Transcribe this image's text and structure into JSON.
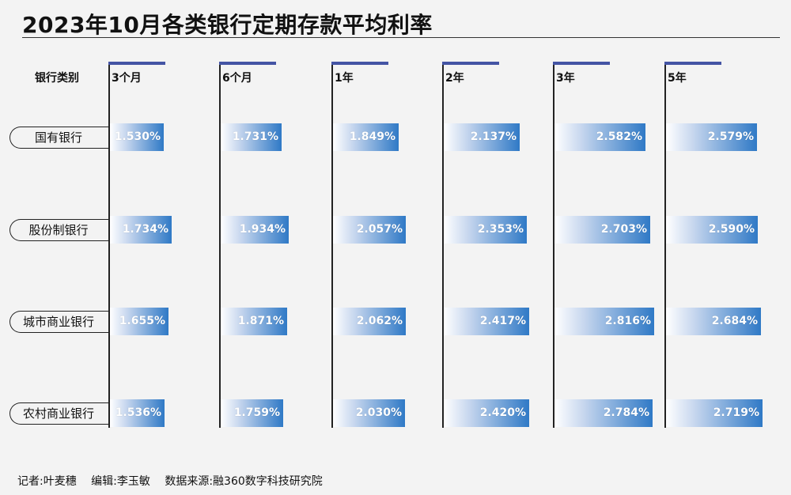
{
  "title": "2023年10月各类银行定期存款平均利率",
  "corner_label": "银行类别",
  "footer": {
    "reporter": "记者:叶麦穗",
    "editor": "编辑:李玉敏",
    "source": "数据来源:融360数字科技研究院"
  },
  "colors": {
    "cap": "#4454a4",
    "bar_end": "#2f79c6",
    "background": "#f3f3f3"
  },
  "chart_data": {
    "type": "bar",
    "title": "2023年10月各类银行定期存款平均利率",
    "categories": [
      "3个月",
      "6个月",
      "1年",
      "2年",
      "3年",
      "5年"
    ],
    "series": [
      {
        "name": "国有银行",
        "values": [
          1.53,
          1.731,
          1.849,
          2.137,
          2.582,
          2.579
        ],
        "labels": [
          "1.530%",
          "1.731%",
          "1.849%",
          "2.137%",
          "2.582%",
          "2.579%"
        ]
      },
      {
        "name": "股份制银行",
        "values": [
          1.734,
          1.934,
          2.057,
          2.353,
          2.703,
          2.59
        ],
        "labels": [
          "1.734%",
          "1.934%",
          "2.057%",
          "2.353%",
          "2.703%",
          "2.590%"
        ]
      },
      {
        "name": "城市商业银行",
        "values": [
          1.655,
          1.871,
          2.062,
          2.417,
          2.816,
          2.684
        ],
        "labels": [
          "1.655%",
          "1.871%",
          "2.062%",
          "2.417%",
          "2.816%",
          "2.684%"
        ]
      },
      {
        "name": "农村商业银行",
        "values": [
          1.536,
          1.759,
          2.03,
          2.42,
          2.784,
          2.719
        ],
        "labels": [
          "1.536%",
          "1.759%",
          "2.030%",
          "2.420%",
          "2.784%",
          "2.719%"
        ]
      }
    ],
    "unit": "%",
    "orientation": "horizontal-small-multiples",
    "grid": false,
    "legend": "none"
  }
}
